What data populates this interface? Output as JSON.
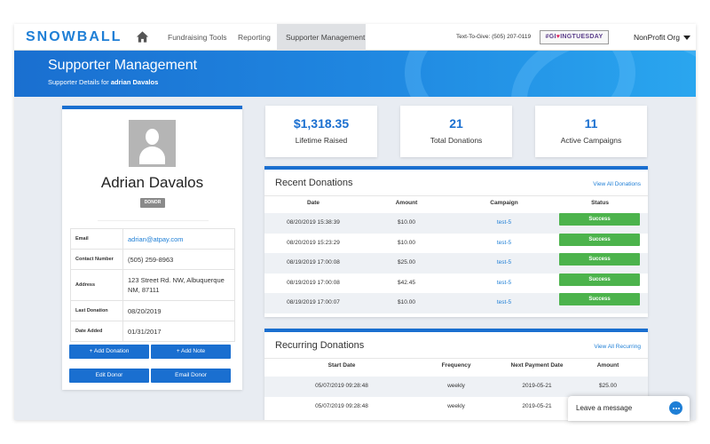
{
  "nav": {
    "logo": "SNOWBALL",
    "items": [
      {
        "label": "Fundraising Tools"
      },
      {
        "label": "Reporting"
      },
      {
        "label": "Supporter Management"
      }
    ],
    "text_to_give": "Text-To-Give: (505) 207-0119",
    "giving_tuesday_prefix": "#GI",
    "giving_tuesday_suffix": "INGTUESDAY",
    "org": "NonProfit Org",
    "home_icon": "home-icon",
    "colors": {
      "brand": "#1f7fd6",
      "active_tab": "#dfe1e4"
    }
  },
  "banner": {
    "title": "Supporter Management",
    "subtitle_prefix": "Supporter Details for",
    "subtitle_name": "adrian Davalos"
  },
  "profile": {
    "name": "Adrian Davalos",
    "badge": "DONOR",
    "fields": [
      {
        "label": "Email",
        "value": "adrian@atpay.com"
      },
      {
        "label": "Contact Number",
        "value": "(505) 259-8963"
      },
      {
        "label": "Address",
        "value": "123 Street Rd. NW, Albuquerque NM, 87111"
      },
      {
        "label": "Last Donation",
        "value": "08/20/2019"
      },
      {
        "label": "Date Added",
        "value": "01/31/2017"
      }
    ],
    "buttons": {
      "add_donation": "+ Add Donation",
      "add_note": "+ Add Note",
      "edit_donor": "Edit Donor",
      "email_donor": "Email Donor"
    }
  },
  "stats": [
    {
      "value": "$1,318.35",
      "label": "Lifetime Raised"
    },
    {
      "value": "21",
      "label": "Total Donations"
    },
    {
      "value": "11",
      "label": "Active Campaigns"
    }
  ],
  "recent": {
    "title": "Recent Donations",
    "link": "View All Donations",
    "columns": [
      "Date",
      "Amount",
      "Campaign",
      "Status"
    ],
    "rows": [
      [
        "08/20/2019 15:38:39",
        "$10.00",
        "test-5",
        "Success"
      ],
      [
        "08/20/2019 15:23:29",
        "$10.00",
        "test-5",
        "Success"
      ],
      [
        "08/19/2019 17:00:08",
        "$25.00",
        "test-5",
        "Success"
      ],
      [
        "08/19/2019 17:00:08",
        "$42.45",
        "test-5",
        "Success"
      ],
      [
        "08/19/2019 17:00:07",
        "$10.00",
        "test-5",
        "Success"
      ]
    ],
    "status_color": "#4cb34c"
  },
  "recurring": {
    "title": "Recurring Donations",
    "link": "View All Recurring",
    "columns": [
      "Start Date",
      "Frequency",
      "Next Payment Date",
      "Amount"
    ],
    "rows": [
      [
        "05/07/2019 09:28:48",
        "weekly",
        "2019-05-21",
        "$25.00"
      ],
      [
        "05/07/2019 09:28:48",
        "weekly",
        "2019-05-21",
        ""
      ]
    ]
  },
  "chat": {
    "label": "Leave a message",
    "icon": "chat-bubble-icon"
  }
}
